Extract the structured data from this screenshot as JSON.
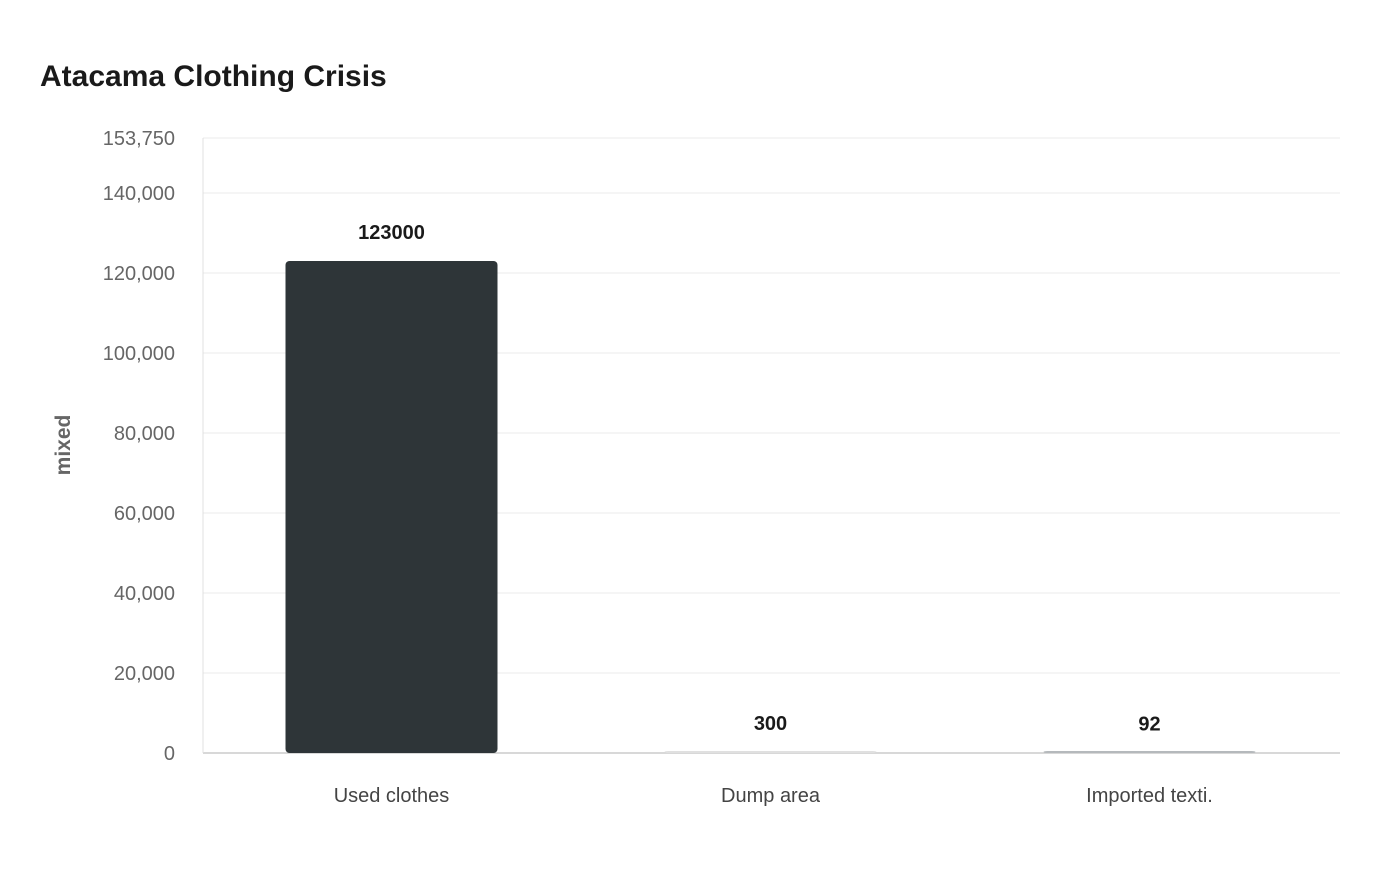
{
  "chart_data": {
    "type": "bar",
    "title": "Atacama Clothing Crisis",
    "xlabel": "",
    "ylabel": "mixed",
    "categories": [
      "Used clothes",
      "Dump area",
      "Imported texti."
    ],
    "values": [
      123000,
      300,
      92
    ],
    "data_labels": [
      "123000",
      "300",
      "92"
    ],
    "ylim": [
      0,
      153750
    ],
    "yticks": [
      0,
      20000,
      40000,
      60000,
      80000,
      100000,
      120000,
      140000,
      153750
    ],
    "ytick_labels": [
      "0",
      "20,000",
      "40,000",
      "60,000",
      "80,000",
      "100,000",
      "120,000",
      "140,000",
      "153,750"
    ],
    "grid": true,
    "legend": "none",
    "colors": [
      "#2e3538",
      "#e0e0e0",
      "#b5b9bc"
    ]
  }
}
